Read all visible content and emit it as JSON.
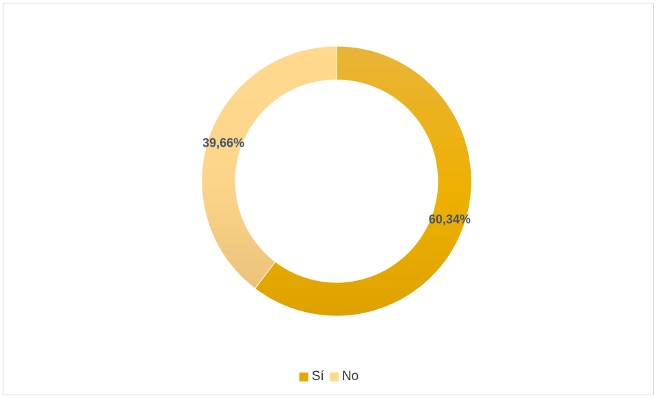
{
  "chart_data": {
    "type": "pie",
    "donut": true,
    "labels": [
      "Sí",
      "No"
    ],
    "values": [
      60.34,
      39.66
    ],
    "data_labels": [
      "60,34%",
      "39,66%"
    ],
    "colors": [
      "#e6a800",
      "#ffd98a"
    ],
    "legend_position": "bottom",
    "title": ""
  }
}
